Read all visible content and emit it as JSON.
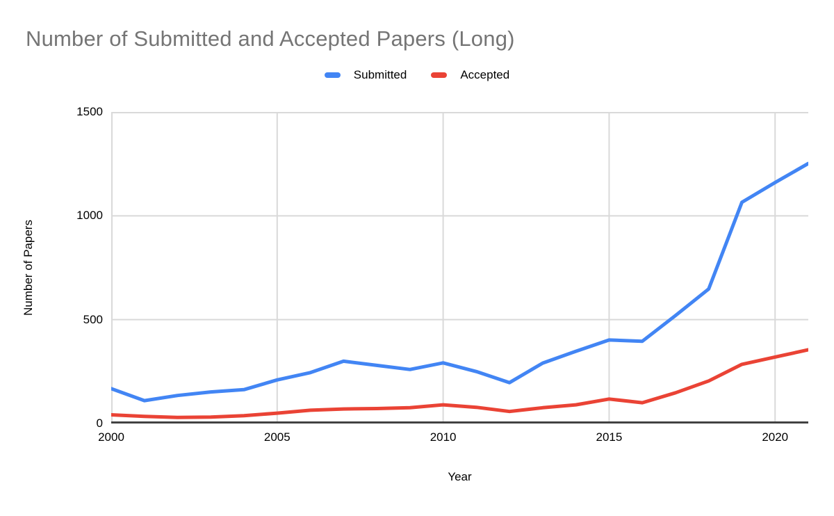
{
  "chart_data": {
    "type": "line",
    "title": "Number of Submitted and Accepted Papers (Long)",
    "xlabel": "Year",
    "ylabel": "Number of Papers",
    "x": [
      2000,
      2001,
      2002,
      2003,
      2004,
      2005,
      2006,
      2007,
      2008,
      2009,
      2010,
      2011,
      2012,
      2013,
      2014,
      2015,
      2016,
      2017,
      2018,
      2019,
      2020,
      2021
    ],
    "series": [
      {
        "name": "Submitted",
        "color": "#4285F4",
        "values": [
          168,
          110,
          135,
          152,
          163,
          210,
          245,
          300,
          280,
          260,
          292,
          250,
          197,
          291,
          348,
          402,
          396,
          520,
          648,
          1065,
          1160,
          1252
        ]
      },
      {
        "name": "Accepted",
        "color": "#EA4335",
        "values": [
          42,
          34,
          29,
          31,
          38,
          50,
          64,
          70,
          72,
          76,
          90,
          78,
          58,
          76,
          90,
          118,
          100,
          148,
          205,
          285,
          320,
          355
        ]
      }
    ],
    "xlim": [
      2000,
      2021
    ],
    "ylim": [
      0,
      1500
    ],
    "yticks": [
      0,
      500,
      1000,
      1500
    ],
    "xticks": [
      2000,
      2005,
      2010,
      2015,
      2020
    ],
    "grid": true,
    "legend_position": "top"
  },
  "colors": {
    "title_text": "#757575",
    "tick_text": "#000000",
    "gridline": "#d9d9d9",
    "axis_line": "#424242",
    "background": "#ffffff"
  }
}
